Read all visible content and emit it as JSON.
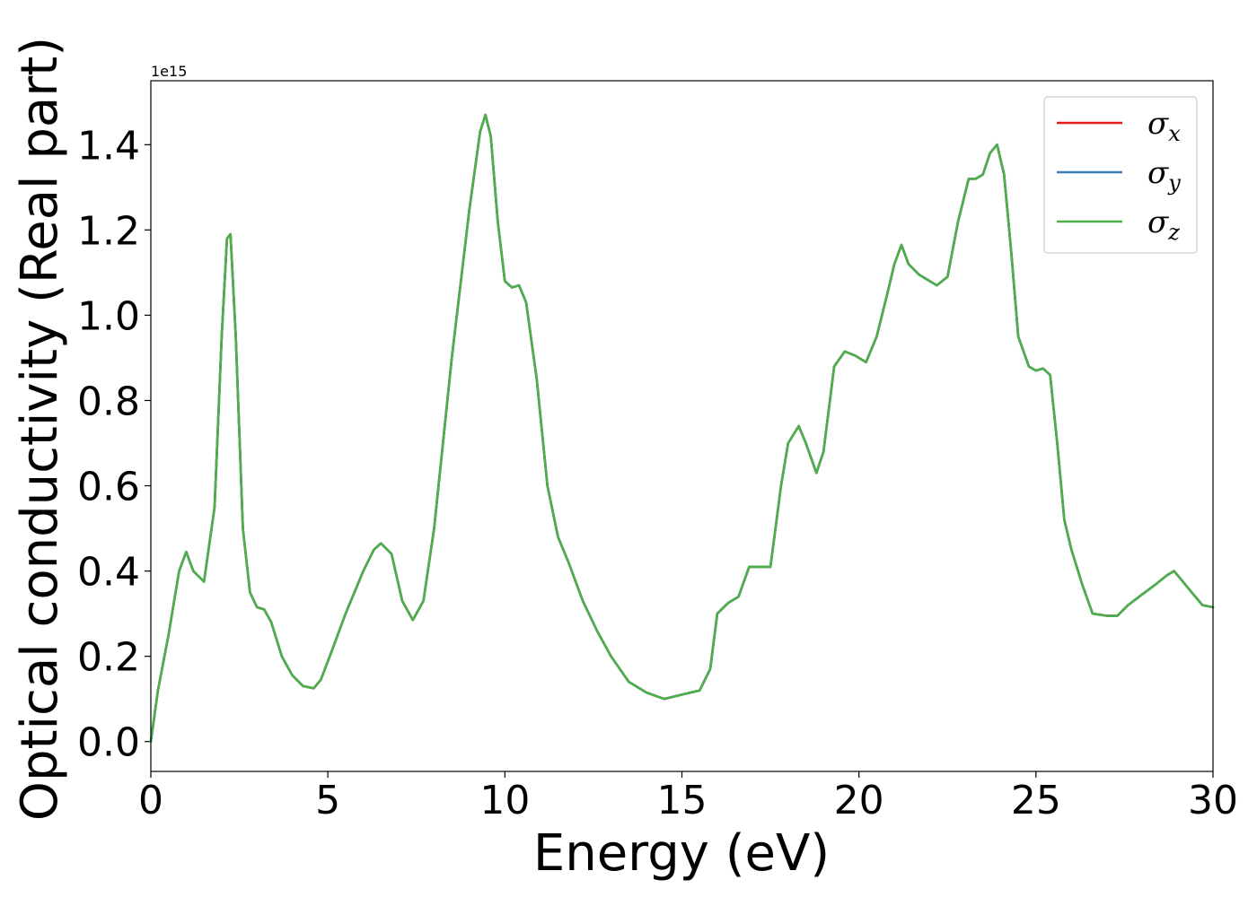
{
  "chart_data": {
    "type": "line",
    "xlabel": "Energy (eV)",
    "ylabel": "Optical conductivity (Real part)",
    "y_offset_label": "1e15",
    "xlim": [
      0,
      30
    ],
    "ylim": [
      -0.07,
      1.55
    ],
    "x_ticks": [
      0,
      5,
      10,
      15,
      20,
      25,
      30
    ],
    "x_tick_labels": [
      "0",
      "5",
      "10",
      "15",
      "20",
      "25",
      "30"
    ],
    "y_ticks": [
      0.0,
      0.2,
      0.4,
      0.6,
      0.8,
      1.0,
      1.2,
      1.4
    ],
    "y_tick_labels": [
      "0.0",
      "0.2",
      "0.4",
      "0.6",
      "0.8",
      "1.0",
      "1.2",
      "1.4"
    ],
    "grid": false,
    "legend_position": "top-right",
    "x": [
      0,
      0.2,
      0.5,
      0.8,
      1.0,
      1.2,
      1.5,
      1.8,
      2.0,
      2.15,
      2.25,
      2.4,
      2.6,
      2.8,
      3.0,
      3.2,
      3.4,
      3.7,
      4.0,
      4.3,
      4.6,
      4.8,
      5.1,
      5.5,
      6.0,
      6.3,
      6.5,
      6.8,
      7.1,
      7.4,
      7.7,
      8.0,
      8.5,
      9.0,
      9.3,
      9.45,
      9.6,
      9.8,
      10.0,
      10.2,
      10.4,
      10.6,
      10.9,
      11.2,
      11.5,
      11.8,
      12.2,
      12.6,
      13.0,
      13.5,
      14.0,
      14.5,
      15.0,
      15.5,
      15.8,
      16.0,
      16.3,
      16.6,
      16.9,
      17.2,
      17.5,
      17.8,
      18.0,
      18.3,
      18.5,
      18.8,
      19.0,
      19.3,
      19.6,
      19.9,
      20.2,
      20.5,
      20.8,
      21.0,
      21.2,
      21.4,
      21.7,
      22.0,
      22.2,
      22.5,
      22.8,
      23.1,
      23.3,
      23.5,
      23.7,
      23.9,
      24.1,
      24.3,
      24.5,
      24.8,
      25.0,
      25.2,
      25.4,
      25.6,
      25.8,
      26.0,
      26.3,
      26.6,
      27.0,
      27.3,
      27.6,
      28.0,
      28.4,
      28.7,
      28.9,
      29.1,
      29.4,
      29.7,
      30.0
    ],
    "series": [
      {
        "name": "σx",
        "color": "#e41a1c",
        "values": [
          0.0,
          0.12,
          0.25,
          0.4,
          0.445,
          0.4,
          0.375,
          0.55,
          0.95,
          1.18,
          1.19,
          0.95,
          0.5,
          0.35,
          0.315,
          0.31,
          0.28,
          0.2,
          0.155,
          0.13,
          0.125,
          0.145,
          0.21,
          0.3,
          0.4,
          0.45,
          0.465,
          0.44,
          0.33,
          0.285,
          0.33,
          0.5,
          0.9,
          1.25,
          1.43,
          1.47,
          1.42,
          1.22,
          1.08,
          1.065,
          1.07,
          1.03,
          0.85,
          0.6,
          0.48,
          0.42,
          0.33,
          0.26,
          0.2,
          0.14,
          0.115,
          0.1,
          0.11,
          0.12,
          0.17,
          0.3,
          0.325,
          0.34,
          0.41,
          0.41,
          0.41,
          0.6,
          0.7,
          0.74,
          0.7,
          0.63,
          0.68,
          0.88,
          0.915,
          0.905,
          0.89,
          0.95,
          1.05,
          1.12,
          1.165,
          1.12,
          1.095,
          1.08,
          1.07,
          1.09,
          1.22,
          1.32,
          1.32,
          1.33,
          1.38,
          1.4,
          1.33,
          1.15,
          0.95,
          0.88,
          0.87,
          0.875,
          0.86,
          0.7,
          0.52,
          0.45,
          0.37,
          0.3,
          0.295,
          0.295,
          0.32,
          0.345,
          0.37,
          0.39,
          0.4,
          0.38,
          0.35,
          0.32,
          0.315
        ]
      },
      {
        "name": "σy",
        "color": "#377eb8",
        "values": [
          0.0,
          0.12,
          0.25,
          0.4,
          0.445,
          0.4,
          0.375,
          0.55,
          0.95,
          1.18,
          1.19,
          0.95,
          0.5,
          0.35,
          0.315,
          0.31,
          0.28,
          0.2,
          0.155,
          0.13,
          0.125,
          0.145,
          0.21,
          0.3,
          0.4,
          0.45,
          0.465,
          0.44,
          0.33,
          0.285,
          0.33,
          0.5,
          0.9,
          1.25,
          1.43,
          1.47,
          1.42,
          1.22,
          1.08,
          1.065,
          1.07,
          1.03,
          0.85,
          0.6,
          0.48,
          0.42,
          0.33,
          0.26,
          0.2,
          0.14,
          0.115,
          0.1,
          0.11,
          0.12,
          0.17,
          0.3,
          0.325,
          0.34,
          0.41,
          0.41,
          0.41,
          0.6,
          0.7,
          0.74,
          0.7,
          0.63,
          0.68,
          0.88,
          0.915,
          0.905,
          0.89,
          0.95,
          1.05,
          1.12,
          1.165,
          1.12,
          1.095,
          1.08,
          1.07,
          1.09,
          1.22,
          1.32,
          1.32,
          1.33,
          1.38,
          1.4,
          1.33,
          1.15,
          0.95,
          0.88,
          0.87,
          0.875,
          0.86,
          0.7,
          0.52,
          0.45,
          0.37,
          0.3,
          0.295,
          0.295,
          0.32,
          0.345,
          0.37,
          0.39,
          0.4,
          0.38,
          0.35,
          0.32,
          0.315
        ]
      },
      {
        "name": "σz",
        "color": "#4daf4a",
        "values": [
          0.0,
          0.12,
          0.25,
          0.4,
          0.445,
          0.4,
          0.375,
          0.55,
          0.95,
          1.18,
          1.19,
          0.95,
          0.5,
          0.35,
          0.315,
          0.31,
          0.28,
          0.2,
          0.155,
          0.13,
          0.125,
          0.145,
          0.21,
          0.3,
          0.4,
          0.45,
          0.465,
          0.44,
          0.33,
          0.285,
          0.33,
          0.5,
          0.9,
          1.25,
          1.43,
          1.47,
          1.42,
          1.22,
          1.08,
          1.065,
          1.07,
          1.03,
          0.85,
          0.6,
          0.48,
          0.42,
          0.33,
          0.26,
          0.2,
          0.14,
          0.115,
          0.1,
          0.11,
          0.12,
          0.17,
          0.3,
          0.325,
          0.34,
          0.41,
          0.41,
          0.41,
          0.6,
          0.7,
          0.74,
          0.7,
          0.63,
          0.68,
          0.88,
          0.915,
          0.905,
          0.89,
          0.95,
          1.05,
          1.12,
          1.165,
          1.12,
          1.095,
          1.08,
          1.07,
          1.09,
          1.22,
          1.32,
          1.32,
          1.33,
          1.38,
          1.4,
          1.33,
          1.15,
          0.95,
          0.88,
          0.87,
          0.875,
          0.86,
          0.7,
          0.52,
          0.45,
          0.37,
          0.3,
          0.295,
          0.295,
          0.32,
          0.345,
          0.37,
          0.39,
          0.4,
          0.38,
          0.35,
          0.32,
          0.315
        ]
      }
    ]
  }
}
